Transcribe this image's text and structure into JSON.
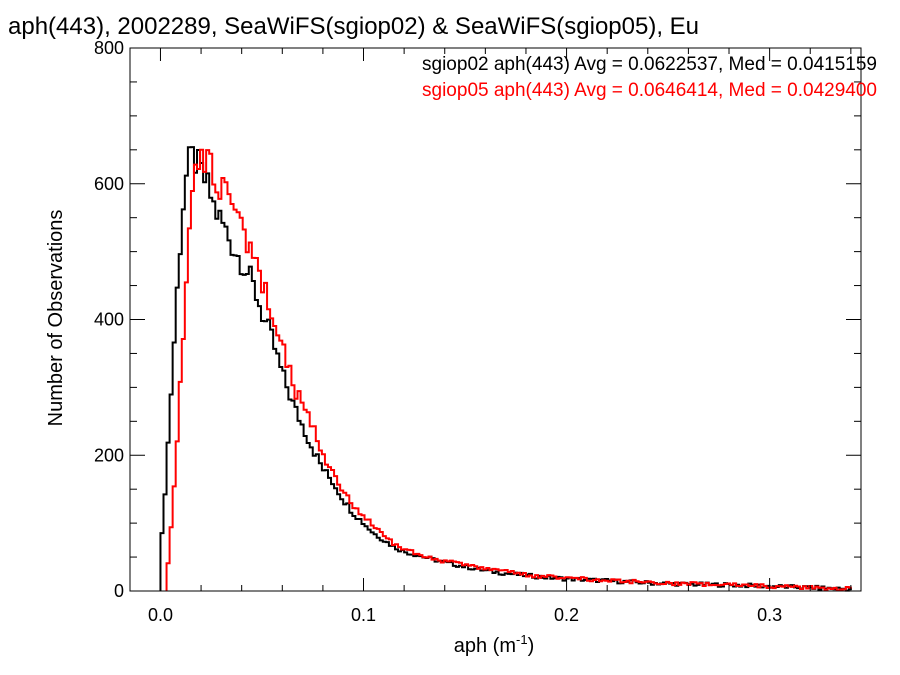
{
  "chart_data": {
    "type": "step-histogram",
    "title": "aph(443), 2002289, SeaWiFS(sgiop02) & SeaWiFS(sgiop05), Eu",
    "xlabel": "aph (m",
    "xlabel_sup": "-1",
    "xlabel_close": ")",
    "ylabel": "Number of Observations",
    "xlim": [
      -0.015,
      0.345
    ],
    "ylim": [
      0,
      800
    ],
    "xticks": [
      0.0,
      0.1,
      0.2,
      0.3
    ],
    "xtick_labels": [
      "0.0",
      "0.1",
      "0.2",
      "0.3"
    ],
    "xminor_step": 0.02,
    "yticks": [
      0,
      200,
      400,
      600,
      800
    ],
    "ytick_labels": [
      "0",
      "200",
      "400",
      "600",
      "800"
    ],
    "yminor_step": 50,
    "bin_width": 0.0015,
    "legend_position": "top-right",
    "series": [
      {
        "name": "sgiop02 aph(443) Avg = 0.0622537, Med = 0.0415159",
        "color": "#000000",
        "x": [
          0.0,
          0.003,
          0.006,
          0.009,
          0.012,
          0.015,
          0.018,
          0.021,
          0.024,
          0.027,
          0.03,
          0.033,
          0.036,
          0.039,
          0.042,
          0.045,
          0.048,
          0.051,
          0.054,
          0.057,
          0.06,
          0.063,
          0.066,
          0.069,
          0.072,
          0.075,
          0.08,
          0.085,
          0.09,
          0.095,
          0.1,
          0.105,
          0.11,
          0.115,
          0.12,
          0.13,
          0.14,
          0.15,
          0.16,
          0.17,
          0.18,
          0.19,
          0.2,
          0.22,
          0.24,
          0.26,
          0.28,
          0.3,
          0.32,
          0.34
        ],
        "y": [
          50,
          180,
          330,
          480,
          600,
          640,
          630,
          610,
          590,
          560,
          545,
          525,
          505,
          490,
          475,
          455,
          430,
          400,
          380,
          350,
          320,
          295,
          270,
          250,
          230,
          210,
          180,
          160,
          135,
          115,
          100,
          85,
          75,
          65,
          58,
          50,
          42,
          36,
          30,
          26,
          23,
          20,
          18,
          15,
          12,
          10,
          9,
          7,
          5,
          3
        ]
      },
      {
        "name": "sgiop05 aph(443) Avg = 0.0646414, Med = 0.0429400",
        "color": "#ff0000",
        "x": [
          0.003,
          0.006,
          0.009,
          0.012,
          0.015,
          0.018,
          0.021,
          0.024,
          0.027,
          0.03,
          0.033,
          0.036,
          0.039,
          0.042,
          0.045,
          0.048,
          0.051,
          0.054,
          0.057,
          0.06,
          0.063,
          0.066,
          0.069,
          0.072,
          0.075,
          0.08,
          0.085,
          0.09,
          0.095,
          0.1,
          0.105,
          0.11,
          0.115,
          0.12,
          0.13,
          0.14,
          0.15,
          0.16,
          0.17,
          0.18,
          0.19,
          0.2,
          0.22,
          0.24,
          0.26,
          0.28,
          0.3,
          0.32,
          0.34
        ],
        "y": [
          15,
          120,
          260,
          410,
          560,
          630,
          645,
          630,
          615,
          595,
          575,
          555,
          535,
          515,
          495,
          470,
          445,
          420,
          390,
          360,
          330,
          300,
          280,
          260,
          240,
          200,
          175,
          150,
          125,
          110,
          95,
          82,
          70,
          62,
          52,
          44,
          38,
          32,
          28,
          24,
          21,
          19,
          16,
          13,
          11,
          9,
          7,
          5,
          3
        ]
      }
    ]
  }
}
